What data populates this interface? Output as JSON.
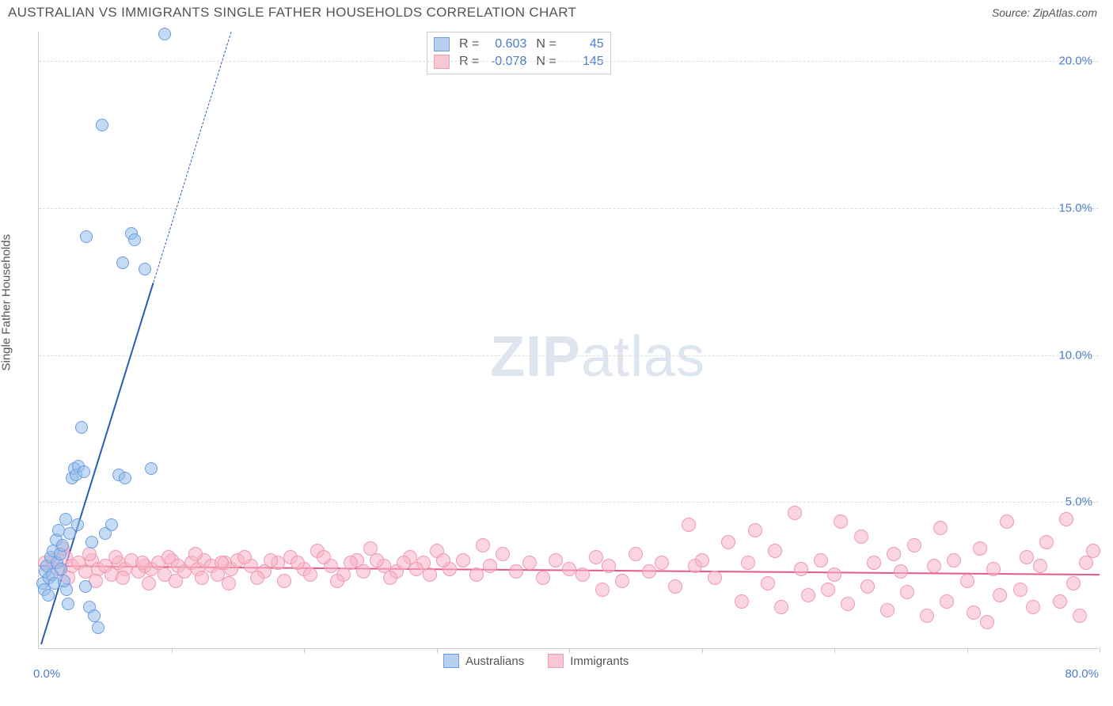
{
  "header": {
    "title": "AUSTRALIAN VS IMMIGRANTS SINGLE FATHER HOUSEHOLDS CORRELATION CHART",
    "source": "Source: ZipAtlas.com"
  },
  "y_axis_label": "Single Father Households",
  "watermark": {
    "zip": "ZIP",
    "rest": "atlas"
  },
  "chart": {
    "type": "scatter",
    "xlim": [
      0,
      80
    ],
    "ylim": [
      0,
      21
    ],
    "x_ticks": [
      0,
      10,
      20,
      30,
      40,
      50,
      60,
      70,
      80
    ],
    "x_tick_labels": {
      "0": "0.0%",
      "80": "80.0%"
    },
    "y_ticks": [
      5,
      10,
      15,
      20
    ],
    "y_tick_labels": [
      "5.0%",
      "10.0%",
      "15.0%",
      "20.0%"
    ],
    "grid_color": "#dddddd",
    "axis_color": "#cccccc",
    "background_color": "#ffffff"
  },
  "stats_box": {
    "rows": [
      {
        "swatch_fill": "#b8d0ef",
        "swatch_border": "#6b9de0",
        "r_label": "R =",
        "r": "0.603",
        "n_label": "N =",
        "n": "45"
      },
      {
        "swatch_fill": "#f7c7d4",
        "swatch_border": "#ef9ab1",
        "r_label": "R =",
        "r": "-0.078",
        "n_label": "N =",
        "n": "145"
      }
    ]
  },
  "legend": {
    "items": [
      {
        "swatch_fill": "#b8d0ef",
        "swatch_border": "#6b9de0",
        "label": "Australians"
      },
      {
        "swatch_fill": "#f7c7d4",
        "swatch_border": "#ef9ab1",
        "label": "Immigrants"
      }
    ]
  },
  "series": {
    "australians": {
      "fill": "rgba(150,190,235,0.55)",
      "stroke": "#6b9de0",
      "marker_radius": 8,
      "trend": {
        "color": "#2a5db0",
        "width": 2,
        "x1": 0.2,
        "y1": 0.2,
        "x2": 14.5,
        "y2": 21,
        "solid_until_y": 12.5
      },
      "points": [
        [
          0.3,
          2.2
        ],
        [
          0.4,
          2.0
        ],
        [
          0.5,
          2.6
        ],
        [
          0.6,
          2.8
        ],
        [
          0.7,
          1.8
        ],
        [
          0.8,
          2.4
        ],
        [
          0.9,
          3.1
        ],
        [
          1.0,
          2.5
        ],
        [
          1.1,
          3.3
        ],
        [
          1.2,
          2.2
        ],
        [
          1.3,
          3.7
        ],
        [
          1.4,
          2.9
        ],
        [
          1.5,
          4.0
        ],
        [
          1.6,
          3.2
        ],
        [
          1.7,
          2.7
        ],
        [
          1.8,
          3.5
        ],
        [
          2.0,
          4.4
        ],
        [
          2.1,
          2.0
        ],
        [
          2.2,
          1.5
        ],
        [
          2.3,
          3.9
        ],
        [
          2.5,
          5.8
        ],
        [
          2.7,
          6.1
        ],
        [
          2.8,
          5.9
        ],
        [
          2.9,
          4.2
        ],
        [
          3.0,
          6.2
        ],
        [
          3.2,
          7.5
        ],
        [
          3.4,
          6.0
        ],
        [
          3.5,
          2.1
        ],
        [
          3.8,
          1.4
        ],
        [
          4.0,
          3.6
        ],
        [
          4.2,
          1.1
        ],
        [
          4.5,
          0.7
        ],
        [
          5.0,
          3.9
        ],
        [
          5.5,
          4.2
        ],
        [
          6.0,
          5.9
        ],
        [
          6.3,
          13.1
        ],
        [
          6.5,
          5.8
        ],
        [
          7.0,
          14.1
        ],
        [
          7.2,
          13.9
        ],
        [
          8.0,
          12.9
        ],
        [
          8.5,
          6.1
        ],
        [
          9.5,
          20.9
        ],
        [
          4.8,
          17.8
        ],
        [
          3.6,
          14.0
        ],
        [
          1.9,
          2.3
        ]
      ]
    },
    "immigrants": {
      "fill": "rgba(247,180,200,0.55)",
      "stroke": "#ef9ab1",
      "marker_radius": 9,
      "trend": {
        "color": "#e55a87",
        "width": 2,
        "x1": 0,
        "y1": 2.85,
        "x2": 80,
        "y2": 2.55
      },
      "points": [
        [
          0.5,
          2.9
        ],
        [
          1.0,
          3.0
        ],
        [
          1.5,
          2.7
        ],
        [
          2.0,
          3.1
        ],
        [
          2.5,
          2.8
        ],
        [
          3.0,
          2.9
        ],
        [
          3.5,
          2.6
        ],
        [
          4.0,
          3.0
        ],
        [
          4.5,
          2.7
        ],
        [
          5.0,
          2.8
        ],
        [
          5.5,
          2.5
        ],
        [
          6.0,
          2.9
        ],
        [
          6.5,
          2.7
        ],
        [
          7.0,
          3.0
        ],
        [
          7.5,
          2.6
        ],
        [
          8.0,
          2.8
        ],
        [
          8.5,
          2.7
        ],
        [
          9.0,
          2.9
        ],
        [
          9.5,
          2.5
        ],
        [
          10.0,
          3.0
        ],
        [
          10.5,
          2.8
        ],
        [
          11.0,
          2.6
        ],
        [
          11.5,
          2.9
        ],
        [
          12.0,
          2.7
        ],
        [
          12.5,
          3.0
        ],
        [
          13.0,
          2.8
        ],
        [
          13.5,
          2.5
        ],
        [
          14.0,
          2.9
        ],
        [
          14.5,
          2.7
        ],
        [
          15.0,
          3.0
        ],
        [
          16.0,
          2.8
        ],
        [
          17.0,
          2.6
        ],
        [
          18.0,
          2.9
        ],
        [
          19.0,
          3.1
        ],
        [
          20.0,
          2.7
        ],
        [
          21.0,
          3.3
        ],
        [
          22.0,
          2.8
        ],
        [
          23.0,
          2.5
        ],
        [
          24.0,
          3.0
        ],
        [
          25.0,
          3.4
        ],
        [
          26.0,
          2.8
        ],
        [
          27.0,
          2.6
        ],
        [
          28.0,
          3.1
        ],
        [
          29.0,
          2.9
        ],
        [
          30.0,
          3.3
        ],
        [
          31.0,
          2.7
        ],
        [
          32.0,
          3.0
        ],
        [
          33.0,
          2.5
        ],
        [
          33.5,
          3.5
        ],
        [
          34.0,
          2.8
        ],
        [
          35.0,
          3.2
        ],
        [
          36.0,
          2.6
        ],
        [
          37.0,
          2.9
        ],
        [
          38.0,
          2.4
        ],
        [
          39.0,
          3.0
        ],
        [
          40.0,
          2.7
        ],
        [
          41.0,
          2.5
        ],
        [
          42.0,
          3.1
        ],
        [
          42.5,
          2.0
        ],
        [
          43.0,
          2.8
        ],
        [
          44.0,
          2.3
        ],
        [
          45.0,
          3.2
        ],
        [
          46.0,
          2.6
        ],
        [
          47.0,
          2.9
        ],
        [
          48.0,
          2.1
        ],
        [
          49.0,
          4.2
        ],
        [
          49.5,
          2.8
        ],
        [
          50.0,
          3.0
        ],
        [
          51.0,
          2.4
        ],
        [
          52.0,
          3.6
        ],
        [
          53.0,
          1.6
        ],
        [
          53.5,
          2.9
        ],
        [
          54.0,
          4.0
        ],
        [
          55.0,
          2.2
        ],
        [
          55.5,
          3.3
        ],
        [
          56.0,
          1.4
        ],
        [
          57.0,
          4.6
        ],
        [
          57.5,
          2.7
        ],
        [
          58.0,
          1.8
        ],
        [
          59.0,
          3.0
        ],
        [
          59.5,
          2.0
        ],
        [
          60.0,
          2.5
        ],
        [
          60.5,
          4.3
        ],
        [
          61.0,
          1.5
        ],
        [
          62.0,
          3.8
        ],
        [
          62.5,
          2.1
        ],
        [
          63.0,
          2.9
        ],
        [
          64.0,
          1.3
        ],
        [
          64.5,
          3.2
        ],
        [
          65.0,
          2.6
        ],
        [
          65.5,
          1.9
        ],
        [
          66.0,
          3.5
        ],
        [
          67.0,
          1.1
        ],
        [
          67.5,
          2.8
        ],
        [
          68.0,
          4.1
        ],
        [
          68.5,
          1.6
        ],
        [
          69.0,
          3.0
        ],
        [
          70.0,
          2.3
        ],
        [
          70.5,
          1.2
        ],
        [
          71.0,
          3.4
        ],
        [
          71.5,
          0.9
        ],
        [
          72.0,
          2.7
        ],
        [
          72.5,
          1.8
        ],
        [
          73.0,
          4.3
        ],
        [
          74.0,
          2.0
        ],
        [
          74.5,
          3.1
        ],
        [
          75.0,
          1.4
        ],
        [
          75.5,
          2.8
        ],
        [
          76.0,
          3.6
        ],
        [
          77.0,
          1.6
        ],
        [
          77.5,
          4.4
        ],
        [
          78.0,
          2.2
        ],
        [
          78.5,
          1.1
        ],
        [
          79.0,
          2.9
        ],
        [
          79.5,
          3.3
        ],
        [
          1.8,
          3.4
        ],
        [
          2.2,
          2.4
        ],
        [
          3.8,
          3.2
        ],
        [
          4.3,
          2.3
        ],
        [
          5.8,
          3.1
        ],
        [
          6.3,
          2.4
        ],
        [
          7.8,
          2.9
        ],
        [
          8.3,
          2.2
        ],
        [
          9.8,
          3.1
        ],
        [
          10.3,
          2.3
        ],
        [
          11.8,
          3.2
        ],
        [
          12.3,
          2.4
        ],
        [
          13.8,
          2.9
        ],
        [
          14.3,
          2.2
        ],
        [
          15.5,
          3.1
        ],
        [
          16.5,
          2.4
        ],
        [
          17.5,
          3.0
        ],
        [
          18.5,
          2.3
        ],
        [
          19.5,
          2.9
        ],
        [
          20.5,
          2.5
        ],
        [
          21.5,
          3.1
        ],
        [
          22.5,
          2.3
        ],
        [
          23.5,
          2.9
        ],
        [
          24.5,
          2.6
        ],
        [
          25.5,
          3.0
        ],
        [
          26.5,
          2.4
        ],
        [
          27.5,
          2.9
        ],
        [
          28.5,
          2.7
        ],
        [
          29.5,
          2.5
        ],
        [
          30.5,
          3.0
        ]
      ]
    }
  }
}
